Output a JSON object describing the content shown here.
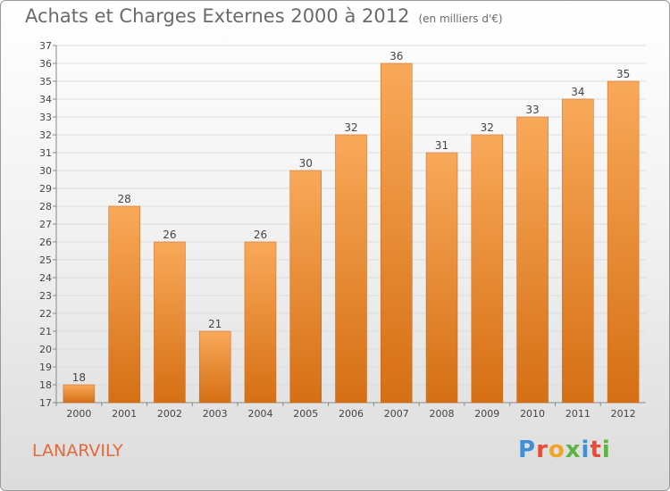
{
  "header": {
    "title": "Achats et Charges Externes 2000 à 2012",
    "unit": "(en milliers d'€)"
  },
  "footer": {
    "commune": "LANARVILY",
    "brand_letters": [
      {
        "char": "P",
        "color": "#3f8fd6"
      },
      {
        "char": "r",
        "color": "#e94b36"
      },
      {
        "char": "o",
        "color": "#f2a51f"
      },
      {
        "char": "x",
        "color": "#5bb443"
      },
      {
        "char": "i",
        "color": "#3f8fd6"
      },
      {
        "char": "t",
        "color": "#e94b36"
      },
      {
        "char": "i",
        "color": "#5bb443"
      }
    ]
  },
  "colors": {
    "bar_top": "#f9a95a",
    "bar_bottom": "#d56f14",
    "grid": "#dcdcdc",
    "text": "#444444"
  },
  "chart_data": {
    "type": "bar",
    "categories": [
      "2000",
      "2001",
      "2002",
      "2003",
      "2004",
      "2005",
      "2006",
      "2007",
      "2008",
      "2009",
      "2010",
      "2011",
      "2012"
    ],
    "values": [
      18,
      28,
      26,
      21,
      26,
      30,
      32,
      36,
      31,
      32,
      33,
      34,
      35
    ],
    "title": "Achats et Charges Externes 2000 à 2012",
    "xlabel": "",
    "ylabel": "",
    "ylim": [
      17,
      37
    ],
    "yticks": [
      17,
      18,
      19,
      20,
      21,
      22,
      23,
      24,
      25,
      26,
      27,
      28,
      29,
      30,
      31,
      32,
      33,
      34,
      35,
      36,
      37
    ],
    "grid": true,
    "data_labels": true
  }
}
